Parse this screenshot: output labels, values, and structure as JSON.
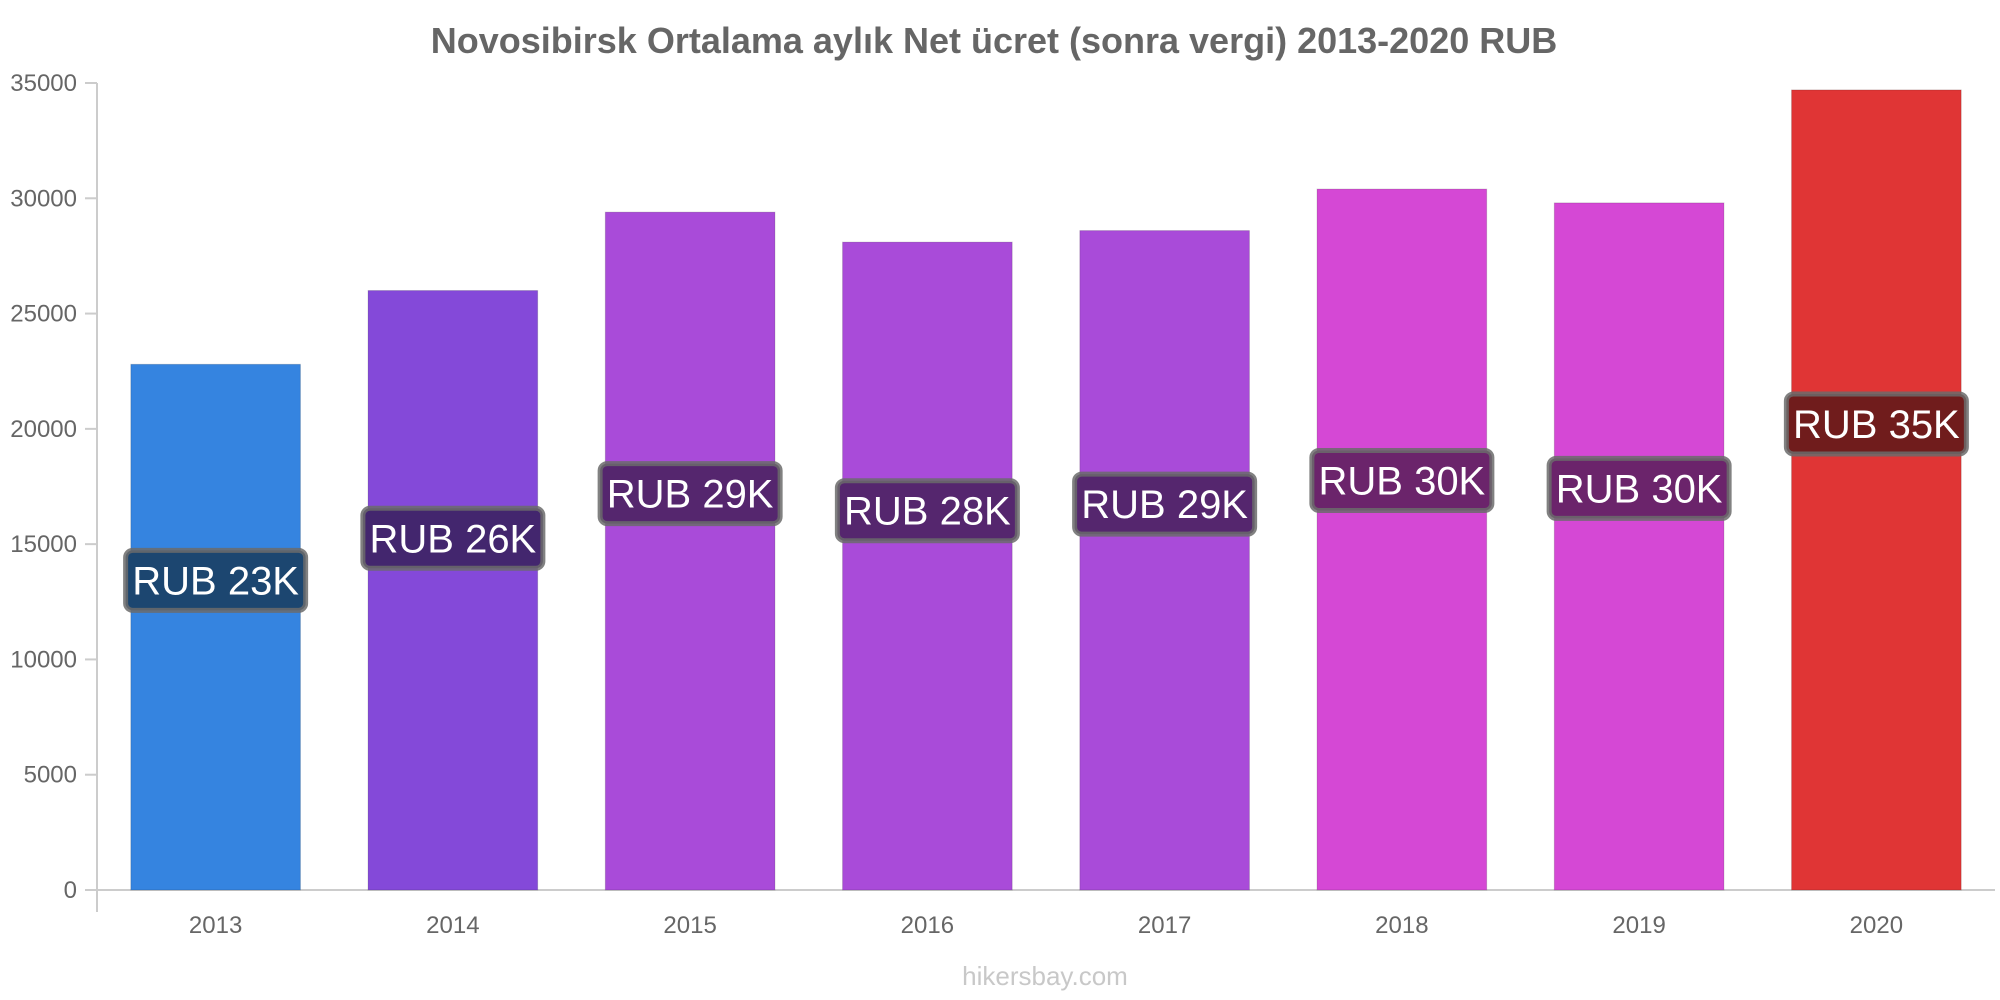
{
  "chart_data": {
    "type": "bar",
    "title": "Novosibirsk Ortalama aylık Net ücret (sonra vergi) 2013-2020 RUB",
    "categories": [
      "2013",
      "2014",
      "2015",
      "2016",
      "2017",
      "2018",
      "2019",
      "2020"
    ],
    "values": [
      22800,
      26000,
      29400,
      28100,
      28600,
      30400,
      29800,
      34700
    ],
    "data_labels": [
      "RUB 23K",
      "RUB 26K",
      "RUB 29K",
      "RUB 28K",
      "RUB 29K",
      "RUB 30K",
      "RUB 30K",
      "RUB 35K"
    ],
    "bar_colors": [
      "#3584e0",
      "#8449d9",
      "#a94bd9",
      "#a94bd9",
      "#a94bd9",
      "#d548d5",
      "#d548d5",
      "#e03535"
    ],
    "label_bg_colors": [
      "#1c4670",
      "#43266e",
      "#55266e",
      "#55266e",
      "#55266e",
      "#6b246b",
      "#6b246b",
      "#701c1c"
    ],
    "ylim": [
      0,
      35000
    ],
    "yticks": [
      0,
      5000,
      10000,
      15000,
      20000,
      25000,
      30000,
      35000
    ],
    "xlabel": "",
    "ylabel": "",
    "grid": false,
    "legend": "none"
  },
  "footer": {
    "watermark": "hikersbay.com"
  }
}
